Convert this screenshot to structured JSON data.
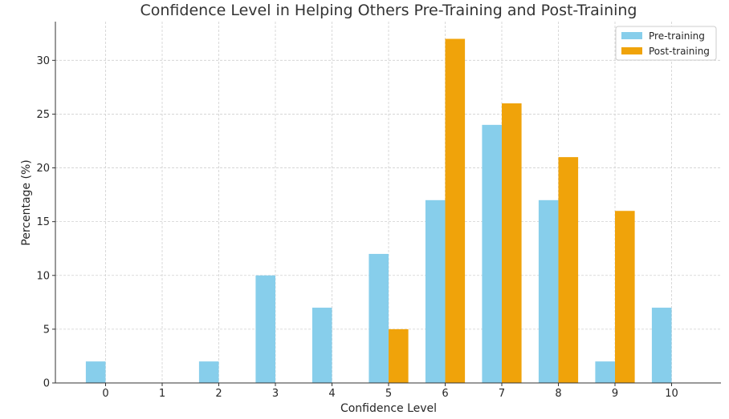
{
  "chart_data": {
    "type": "bar",
    "title": "Confidence Level in Helping Others Pre-Training and Post-Training",
    "xlabel": "Confidence Level",
    "ylabel": "Percentage (%)",
    "categories": [
      "0",
      "1",
      "2",
      "3",
      "4",
      "5",
      "6",
      "7",
      "8",
      "9",
      "10"
    ],
    "series": [
      {
        "name": "Pre-training",
        "color": "#87CEEB",
        "values": [
          2,
          0,
          2,
          10,
          7,
          12,
          17,
          24,
          17,
          2,
          7
        ]
      },
      {
        "name": "Post-training",
        "color": "#F0A30A",
        "values": [
          0,
          0,
          0,
          0,
          0,
          5,
          32,
          26,
          21,
          16,
          0
        ]
      }
    ],
    "yticks": [
      0,
      5,
      10,
      15,
      20,
      25,
      30
    ],
    "ylim": [
      0,
      33.6
    ],
    "grid": true,
    "legend_position": "top-right"
  }
}
